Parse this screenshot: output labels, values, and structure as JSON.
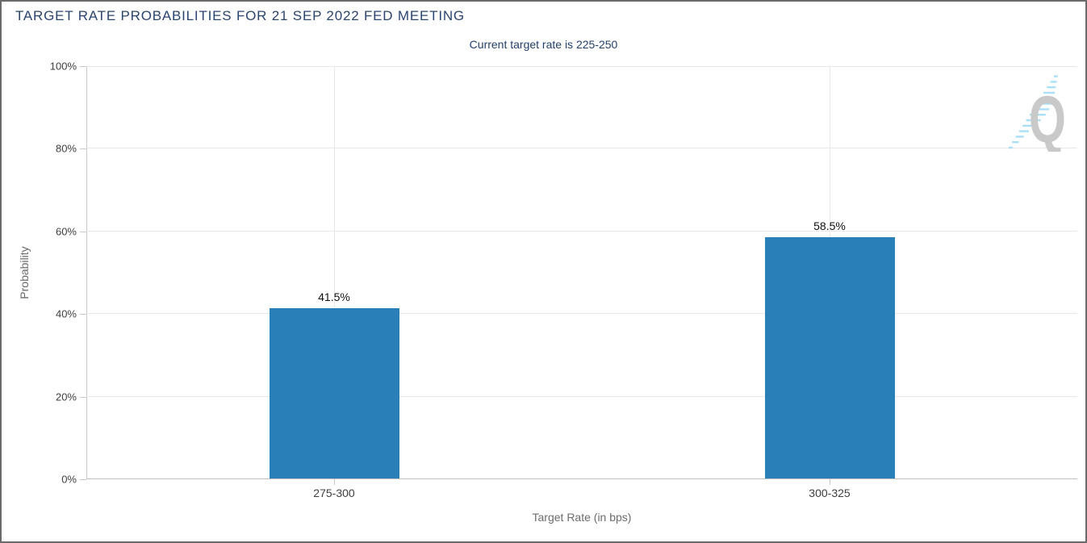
{
  "header": {
    "title": "TARGET RATE PROBABILITIES FOR 21 SEP 2022 FED MEETING",
    "subtitle": "Current target rate is 225-250"
  },
  "watermark": {
    "letter": "Q"
  },
  "chart_data": {
    "type": "bar",
    "title": "TARGET RATE PROBABILITIES FOR 21 SEP 2022 FED MEETING",
    "subtitle": "Current target rate is 225-250",
    "categories": [
      "275-300",
      "300-325"
    ],
    "values": [
      41.5,
      58.5
    ],
    "value_labels": [
      "41.5%",
      "58.5%"
    ],
    "xlabel": "Target Rate (in bps)",
    "ylabel": "Probability",
    "ylim": [
      0,
      100
    ],
    "ytick_step": 20,
    "ytick_labels": [
      "0%",
      "20%",
      "40%",
      "60%",
      "80%",
      "100%"
    ],
    "grid": true,
    "legend_position": "none",
    "bar_color": "#2980b9"
  },
  "colors": {
    "title": "#2b4570",
    "subtitle": "#24406e",
    "axis_text": "#6b6b6b",
    "tick_text": "#3f3f3f",
    "grid": "#e8e8e8",
    "axis_line": "#c8c8c8",
    "zero_line": "#bfbfbf",
    "value_label": "#111111",
    "bar": "#2980b9",
    "watermark_gray": "#c9c9c9",
    "watermark_blue": "#aadff7",
    "border": "#6a6a6a"
  }
}
